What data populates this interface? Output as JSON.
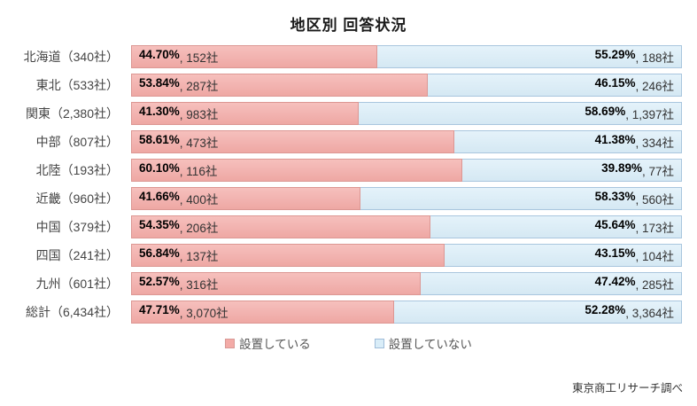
{
  "title": "地区別 回答状況",
  "footer": "東京商工リサーチ調べ",
  "colors": {
    "installed_fill": "#f3aba7",
    "installed_border": "#dc9793",
    "not_installed_fill": "#d9edf8",
    "not_installed_border": "#a9c6de"
  },
  "legend": [
    {
      "label": "設置している",
      "color": "#f3aba7"
    },
    {
      "label": "設置していない",
      "color": "#d9edf8"
    }
  ],
  "chart_data": {
    "type": "bar",
    "orientation": "horizontal",
    "stacked": true,
    "title": "地区別 回答状況",
    "xlim": [
      0,
      100
    ],
    "legend_position": "bottom",
    "value_label_format": "{percent}%, {count}社",
    "categories": [
      "北海道（340社）",
      "東北（533社）",
      "関東（2,380社）",
      "中部（807社）",
      "北陸（193社）",
      "近畿（960社）",
      "中国（379社）",
      "四国（241社）",
      "九州（601社）",
      "総計（6,434社）"
    ],
    "series": [
      {
        "name": "設置している",
        "color": "#f3aba7",
        "percents": [
          44.7,
          53.84,
          41.3,
          58.61,
          60.1,
          41.66,
          54.35,
          56.84,
          52.57,
          47.71
        ],
        "counts": [
          152,
          287,
          983,
          473,
          116,
          400,
          206,
          137,
          316,
          3070
        ]
      },
      {
        "name": "設置していない",
        "color": "#d9edf8",
        "percents": [
          55.29,
          46.15,
          58.69,
          41.38,
          39.89,
          58.33,
          45.64,
          43.15,
          47.42,
          52.28
        ],
        "counts": [
          188,
          246,
          1397,
          334,
          77,
          560,
          173,
          104,
          285,
          3364
        ]
      }
    ]
  },
  "rows": [
    {
      "label": "北海道（340社）",
      "left_pct": 44.7,
      "left_pct_label": "44.70%",
      "left_count_label": ", 152社",
      "right_pct_label": "55.29%",
      "right_count_label": ", 188社"
    },
    {
      "label": "東北（533社）",
      "left_pct": 53.84,
      "left_pct_label": "53.84%",
      "left_count_label": ", 287社",
      "right_pct_label": "46.15%",
      "right_count_label": ", 246社"
    },
    {
      "label": "関東（2,380社）",
      "left_pct": 41.3,
      "left_pct_label": "41.30%",
      "left_count_label": ", 983社",
      "right_pct_label": "58.69%",
      "right_count_label": ", 1,397社"
    },
    {
      "label": "中部（807社）",
      "left_pct": 58.61,
      "left_pct_label": "58.61%",
      "left_count_label": ", 473社",
      "right_pct_label": "41.38%",
      "right_count_label": ", 334社"
    },
    {
      "label": "北陸（193社）",
      "left_pct": 60.1,
      "left_pct_label": "60.10%",
      "left_count_label": ", 116社",
      "right_pct_label": "39.89%",
      "right_count_label": ", 77社"
    },
    {
      "label": "近畿（960社）",
      "left_pct": 41.66,
      "left_pct_label": "41.66%",
      "left_count_label": ", 400社",
      "right_pct_label": "58.33%",
      "right_count_label": ", 560社"
    },
    {
      "label": "中国（379社）",
      "left_pct": 54.35,
      "left_pct_label": "54.35%",
      "left_count_label": ", 206社",
      "right_pct_label": "45.64%",
      "right_count_label": ", 173社"
    },
    {
      "label": "四国（241社）",
      "left_pct": 56.84,
      "left_pct_label": "56.84%",
      "left_count_label": ", 137社",
      "right_pct_label": "43.15%",
      "right_count_label": ", 104社"
    },
    {
      "label": "九州（601社）",
      "left_pct": 52.57,
      "left_pct_label": "52.57%",
      "left_count_label": ", 316社",
      "right_pct_label": "47.42%",
      "right_count_label": ", 285社"
    },
    {
      "label": "総計（6,434社）",
      "left_pct": 47.71,
      "left_pct_label": "47.71%",
      "left_count_label": ", 3,070社",
      "right_pct_label": "52.28%",
      "right_count_label": ", 3,364社"
    }
  ]
}
